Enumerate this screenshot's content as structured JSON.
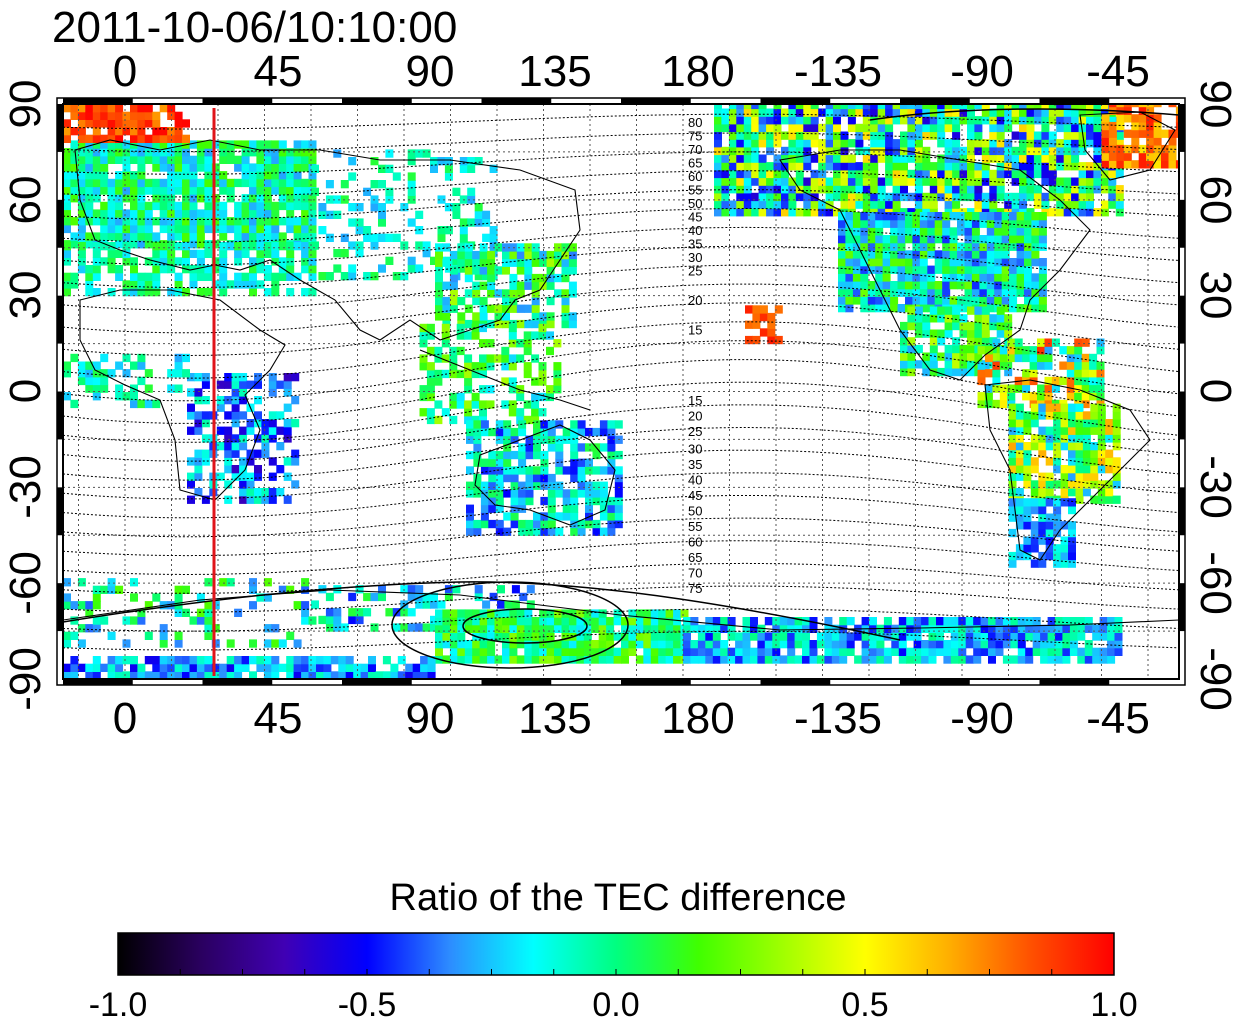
{
  "title": "2011-10-06/10:10:00",
  "map": {
    "top_lon_labels": [
      "0",
      "45",
      "90",
      "135",
      "180",
      "-135",
      "-90",
      "-45"
    ],
    "bottom_lon_labels": [
      "0",
      "45",
      "90",
      "135",
      "180",
      "-135",
      "-90",
      "-45"
    ],
    "left_lat_labels": [
      "90",
      "60",
      "30",
      "0",
      "-30",
      "-60",
      "-90"
    ],
    "right_lat_labels": [
      "90",
      "60",
      "30",
      "0",
      "-30",
      "-60",
      "-90"
    ],
    "marker_line_color": "#e0141a",
    "north_contour_labels": [
      "80",
      "75",
      "70",
      "65",
      "60",
      "55",
      "50",
      "45",
      "40",
      "35",
      "30",
      "25",
      "20",
      "15"
    ],
    "south_contour_labels": [
      "15",
      "20",
      "25",
      "30",
      "35",
      "40",
      "45",
      "50",
      "55",
      "60",
      "65",
      "70",
      "75"
    ]
  },
  "colorbar": {
    "title": "Ratio of the TEC difference",
    "ticks": [
      "-1.0",
      "-0.5",
      "0.0",
      "0.5",
      "1.0"
    ],
    "colors": [
      "#000000",
      "#2a005f",
      "#4000b4",
      "#0000ff",
      "#2d8cff",
      "#00ffff",
      "#00ff80",
      "#40ff00",
      "#a0ff00",
      "#ffff00",
      "#ffb000",
      "#ff5000",
      "#ff0000"
    ]
  }
}
